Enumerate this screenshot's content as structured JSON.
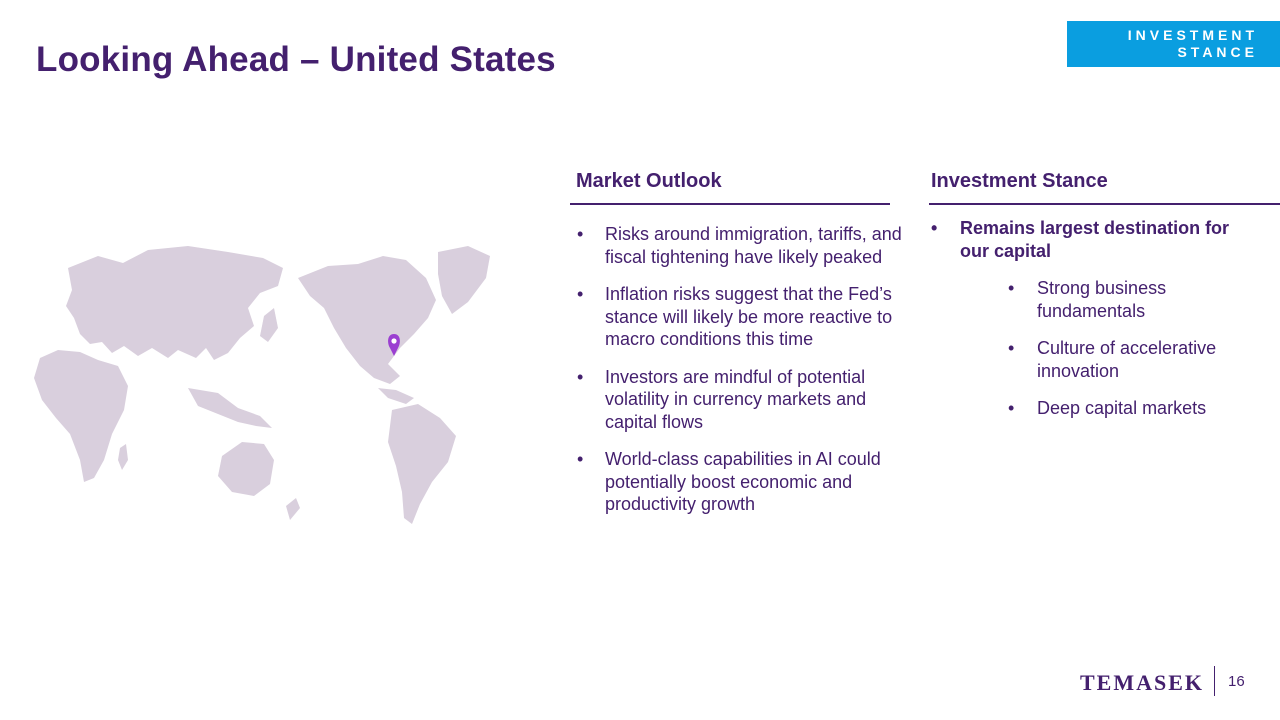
{
  "slide": {
    "title": "Looking Ahead – United States",
    "badge": "INVESTMENT STANCE",
    "page_number": "16",
    "logo_text": "TEMASEK"
  },
  "market_outlook": {
    "heading": "Market Outlook",
    "bullets": [
      "Risks around immigration, tariffs, and fiscal tightening have likely peaked",
      "Inflation risks suggest that the Fed’s stance will likely be more reactive to macro conditions this time",
      "Investors are mindful of potential volatility in currency markets and capital flows",
      "World-class capabilities in AI could potentially boost economic and productivity growth"
    ]
  },
  "investment_stance": {
    "heading": "Investment Stance",
    "main_point": "Remains largest destination for our capital",
    "sub_points": [
      "Strong business fundamentals",
      "Culture of accelerative innovation",
      "Deep capital markets"
    ]
  },
  "map": {
    "land_color": "#d9cfdd",
    "pin_color": "#9b3fd1",
    "pin_icon": "location-pin-icon"
  },
  "colors": {
    "accent_purple": "#44206e",
    "badge_blue": "#0a9ee0"
  }
}
